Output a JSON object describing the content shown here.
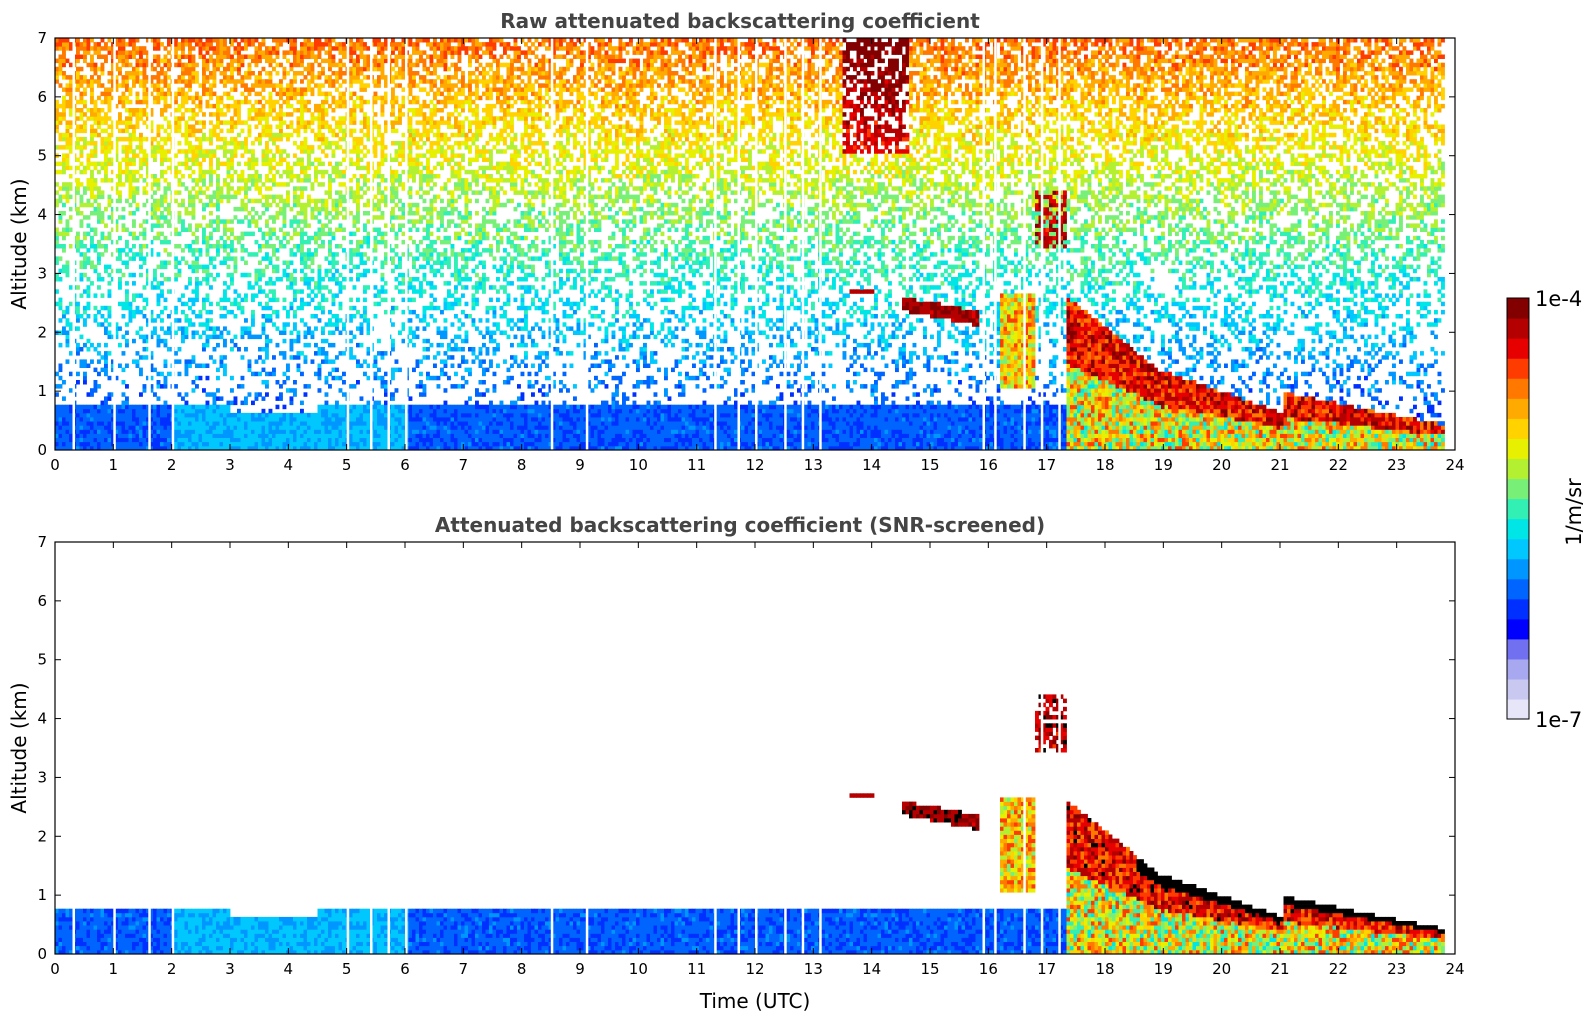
{
  "chart_data": [
    {
      "type": "heatmap",
      "title": "Raw attenuated backscattering coefficient",
      "xlabel": "",
      "ylabel": "Altitude (km)",
      "xlim": [
        0,
        24
      ],
      "ylim": [
        0,
        7
      ],
      "x_ticks": [
        "0",
        "1",
        "2",
        "3",
        "4",
        "5",
        "6",
        "7",
        "8",
        "9",
        "10",
        "11",
        "12",
        "13",
        "14",
        "15",
        "16",
        "17",
        "18",
        "19",
        "20",
        "21",
        "22",
        "23",
        "24"
      ],
      "y_ticks": [
        "0",
        "1",
        "2",
        "3",
        "4",
        "5",
        "6",
        "7"
      ],
      "screened": false,
      "features": [
        {
          "name": "boundary-layer",
          "time": [
            0,
            18
          ],
          "altitude": [
            0,
            0.7
          ],
          "level": "low"
        },
        {
          "name": "elevated-aerosol-layer",
          "time": [
            14.5,
            15.8
          ],
          "altitude": [
            2.2,
            2.6
          ],
          "level": "high"
        },
        {
          "name": "cloud-column",
          "time": [
            16.3,
            17.5
          ],
          "altitude": [
            1,
            4.4
          ],
          "level": "high"
        },
        {
          "name": "descending-layer",
          "time": [
            17.5,
            23.8
          ],
          "altitude": [
            0.2,
            1.5
          ],
          "level": "high"
        }
      ]
    },
    {
      "type": "heatmap",
      "title": "Attenuated backscattering coefficient (SNR-screened)",
      "xlabel": "Time (UTC)",
      "ylabel": "Altitude (km)",
      "xlim": [
        0,
        24
      ],
      "ylim": [
        0,
        7
      ],
      "x_ticks": [
        "0",
        "1",
        "2",
        "3",
        "4",
        "5",
        "6",
        "7",
        "8",
        "9",
        "10",
        "11",
        "12",
        "13",
        "14",
        "15",
        "16",
        "17",
        "18",
        "19",
        "20",
        "21",
        "22",
        "23",
        "24"
      ],
      "y_ticks": [
        "0",
        "1",
        "2",
        "3",
        "4",
        "5",
        "6",
        "7"
      ],
      "screened": true
    }
  ],
  "colorbar": {
    "label": "1/m/sr",
    "max_label": "1e-4",
    "min_label": "1e-7",
    "colors": [
      "#e6e6f8",
      "#c8c8f0",
      "#a8a8f0",
      "#7070f0",
      "#0000ff",
      "#0030ff",
      "#0064ff",
      "#0096ff",
      "#00c8ff",
      "#00e6e6",
      "#32f0b4",
      "#78f078",
      "#b4f032",
      "#e6f000",
      "#ffd200",
      "#ffaa00",
      "#ff7800",
      "#ff3c00",
      "#e60000",
      "#b40000",
      "#820000"
    ]
  }
}
